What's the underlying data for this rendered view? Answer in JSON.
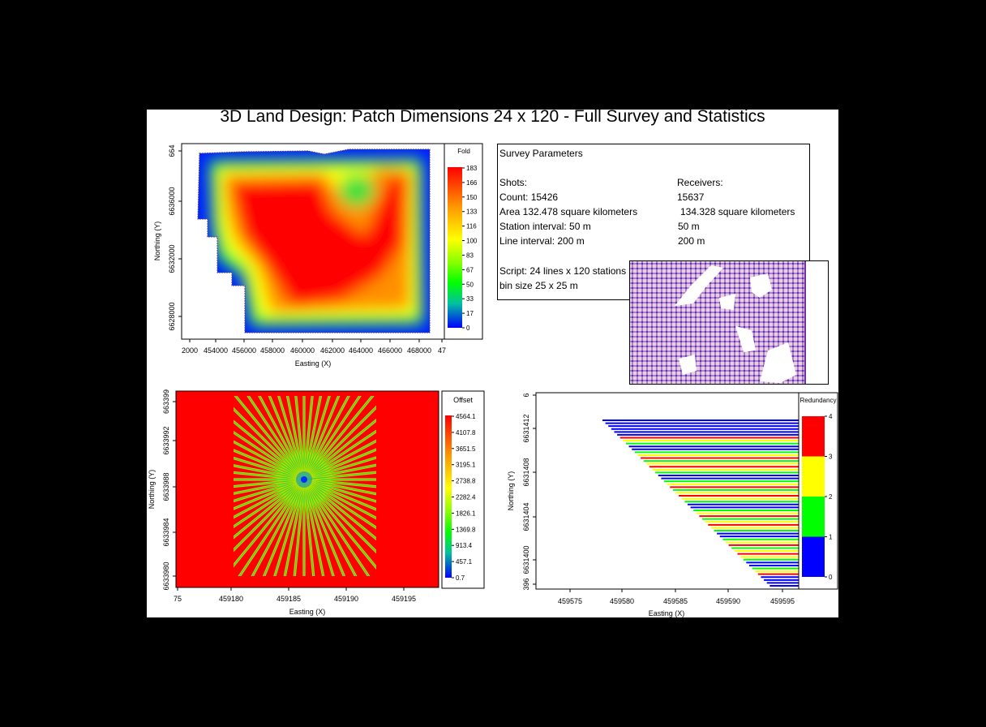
{
  "title": "3D Land Design: Patch Dimensions 24 x 120 - Full Survey and Statistics",
  "survey_parameters": {
    "heading": "Survey Parameters",
    "shots": {
      "label": "Shots:",
      "count": "Count: 15426",
      "area": "Area 132.478 square kilometers",
      "station_interval": "Station interval: 50 m",
      "line_interval": "Line interval: 200 m"
    },
    "receivers": {
      "label": "Receivers:",
      "count": "15637",
      "area": "134.328 square kilometers",
      "station_interval": "50 m",
      "line_interval": "200 m"
    },
    "script": "Script: 24 lines x 120 stations",
    "bin_size": "bin size 25 x 25 m"
  },
  "chart_data": [
    {
      "type": "heatmap",
      "id": "fold-map",
      "xlabel": "Easting (X)",
      "ylabel": "Northing (Y)",
      "x_ticks": [
        "2000",
        "454000",
        "456000",
        "458000",
        "460000",
        "462000",
        "464000",
        "466000",
        "468000",
        "47"
      ],
      "y_ticks": [
        "664",
        "6636000",
        "6632000",
        "6628000"
      ],
      "colorbar": {
        "title": "Fold",
        "ticks": [
          "183",
          "166",
          "150",
          "133",
          "116",
          "100",
          "83",
          "67",
          "50",
          "33",
          "17",
          "0"
        ],
        "range": [
          0,
          183
        ]
      },
      "description_values": {
        "max_fold": 183,
        "min_fold": 0
      }
    },
    {
      "type": "heatmap",
      "id": "offset-map",
      "xlabel": "Easting (X)",
      "ylabel": "Northing (Y)",
      "x_ticks": [
        "75",
        "459180",
        "459185",
        "459190",
        "459195"
      ],
      "y_ticks": [
        "663399",
        "6633992",
        "6633988",
        "6633984",
        "6633980"
      ],
      "colorbar": {
        "title": "Offset",
        "ticks": [
          "4564.1",
          "4107.8",
          "3651.5",
          "3195.1",
          "2738.8",
          "2282.4",
          "1826.1",
          "1369.8",
          "913.4",
          "457.1",
          "0.7"
        ],
        "range": [
          0.7,
          4564.1
        ]
      },
      "spoke_count": 64,
      "center": {
        "x": 459186.3,
        "y": 6633988.3
      }
    },
    {
      "type": "bar",
      "id": "redundancy",
      "orientation": "horizontal",
      "xlabel": "Easting (X)",
      "ylabel": "Northing (Y)",
      "x_ticks": [
        "459575",
        "459580",
        "459585",
        "459590",
        "459595"
      ],
      "y_ticks": [
        "6",
        "6631412",
        "6631408",
        "6631404",
        "6631400",
        "396"
      ],
      "colorbar": {
        "title": "Redundancy",
        "ticks": [
          "4",
          "3",
          "2",
          "1",
          "0"
        ],
        "range": [
          0,
          4
        ],
        "colors": [
          "#ff0000",
          "#ffff00",
          "#00ff00",
          "#0000ff"
        ]
      },
      "xlim": [
        459572,
        459596.5
      ],
      "ylim": [
        6631396,
        6631416
      ],
      "bars_start_x_at_top": 459578.2,
      "bars_start_x_at_bottom": 459593.8,
      "bar_count": 58
    }
  ],
  "colors": {
    "background": "#000000",
    "panel": "#ffffff",
    "accent_red": "#ff0000"
  }
}
